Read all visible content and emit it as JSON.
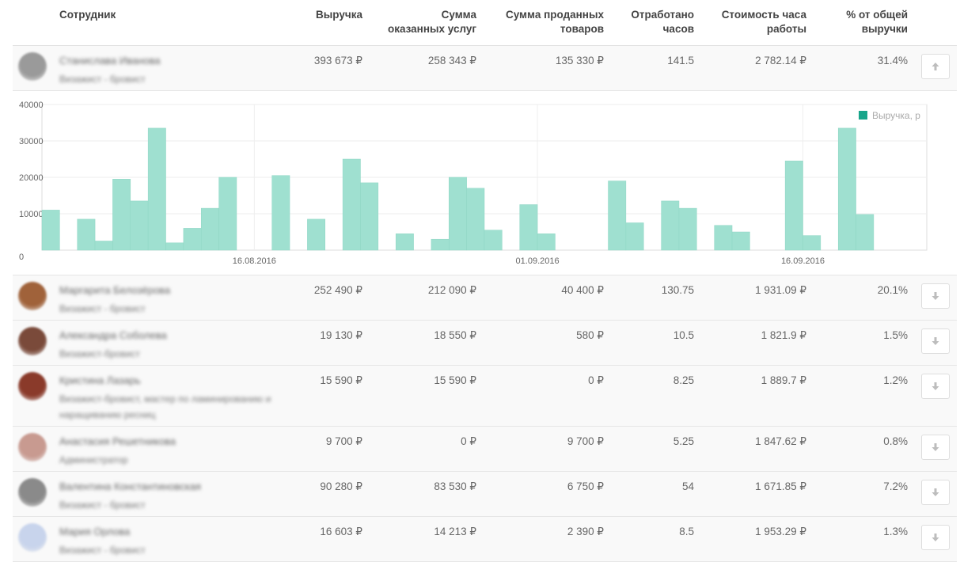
{
  "columns": {
    "employee": "Сотрудник",
    "revenue": "Выручка",
    "services_1": "Сумма",
    "services_2": "оказанных услуг",
    "goods_1": "Сумма проданных",
    "goods_2": "товаров",
    "hours_1": "Отработано",
    "hours_2": "часов",
    "hour_cost_1": "Стоимость часа",
    "hour_cost_2": "работы",
    "share_1": "% от общей",
    "share_2": "выручки"
  },
  "rows": [
    {
      "name": "Станислава Иванова",
      "role": "Визажист - бровист",
      "revenue": "393 673 ₽",
      "services": "258 343 ₽",
      "goods": "135 330 ₽",
      "hours": "141.5",
      "hour_cost": "2 782.14 ₽",
      "share": "31.4%",
      "avatar_color": "#9a9a9a",
      "button_icon": "arrow-up-icon"
    },
    {
      "name": "Маргарита Белозёрова",
      "role": "Визажист - бровист",
      "revenue": "252 490 ₽",
      "services": "212 090 ₽",
      "goods": "40 400 ₽",
      "hours": "130.75",
      "hour_cost": "1 931.09 ₽",
      "share": "20.1%",
      "avatar_color": "#a0623a",
      "button_icon": "arrow-down-icon"
    },
    {
      "name": "Александра Соболева",
      "role": "Визажист-бровист",
      "revenue": "19 130 ₽",
      "services": "18 550 ₽",
      "goods": "580 ₽",
      "hours": "10.5",
      "hour_cost": "1 821.9 ₽",
      "share": "1.5%",
      "avatar_color": "#7a4a3a",
      "button_icon": "arrow-down-icon"
    },
    {
      "name": "Кристина Лазарь",
      "role": "Визажист-бровист, мастер по ламинированию и наращиванию ресниц",
      "revenue": "15 590 ₽",
      "services": "15 590 ₽",
      "goods": "0 ₽",
      "hours": "8.25",
      "hour_cost": "1 889.7 ₽",
      "share": "1.2%",
      "avatar_color": "#8a3a2a",
      "button_icon": "arrow-down-icon"
    },
    {
      "name": "Анастасия Решетникова",
      "role": "Администратор",
      "revenue": "9 700 ₽",
      "services": "0 ₽",
      "goods": "9 700 ₽",
      "hours": "5.25",
      "hour_cost": "1 847.62 ₽",
      "share": "0.8%",
      "avatar_color": "#c89a90",
      "button_icon": "arrow-down-icon"
    },
    {
      "name": "Валентина Константиновская",
      "role": "Визажист - бровист",
      "revenue": "90 280 ₽",
      "services": "83 530 ₽",
      "goods": "6 750 ₽",
      "hours": "54",
      "hour_cost": "1 671.85 ₽",
      "share": "7.2%",
      "avatar_color": "#8a8a8a",
      "button_icon": "arrow-down-icon"
    },
    {
      "name": "Мария Орлова",
      "role": "Визажист - бровист",
      "revenue": "16 603 ₽",
      "services": "14 213 ₽",
      "goods": "2 390 ₽",
      "hours": "8.5",
      "hour_cost": "1 953.29 ₽",
      "share": "1.3%",
      "avatar_color": "#c8d4ec",
      "button_icon": "arrow-down-icon"
    }
  ],
  "colors": {
    "bar": "#9fe0d0",
    "bar_stroke": "#8fd6c4",
    "legend_swatch": "#17a58a",
    "grid": "#eeeeee"
  },
  "chart_data": {
    "type": "bar",
    "legend": "Выручка, р",
    "legend_position": "top-right",
    "grid": true,
    "ylim": [
      0,
      40000
    ],
    "y_ticks": [
      "0",
      "10000",
      "20000",
      "30000",
      "40000"
    ],
    "x_ticks": [
      {
        "label": "16.08.2016",
        "index": 12
      },
      {
        "label": "01.09.2016",
        "index": 28
      },
      {
        "label": "16.09.2016",
        "index": 43
      }
    ],
    "series": [
      {
        "name": "Выручка, р",
        "values": [
          11000,
          0,
          8500,
          2500,
          19500,
          13500,
          33500,
          2000,
          6000,
          11500,
          20000,
          0,
          0,
          20500,
          0,
          8500,
          0,
          25000,
          18500,
          0,
          4500,
          0,
          3000,
          20000,
          17000,
          5500,
          0,
          12500,
          4500,
          0,
          0,
          0,
          19000,
          7500,
          0,
          13500,
          11500,
          0,
          6800,
          5000,
          0,
          0,
          24500,
          4000,
          0,
          33500,
          9800,
          0,
          0,
          0
        ]
      }
    ]
  }
}
